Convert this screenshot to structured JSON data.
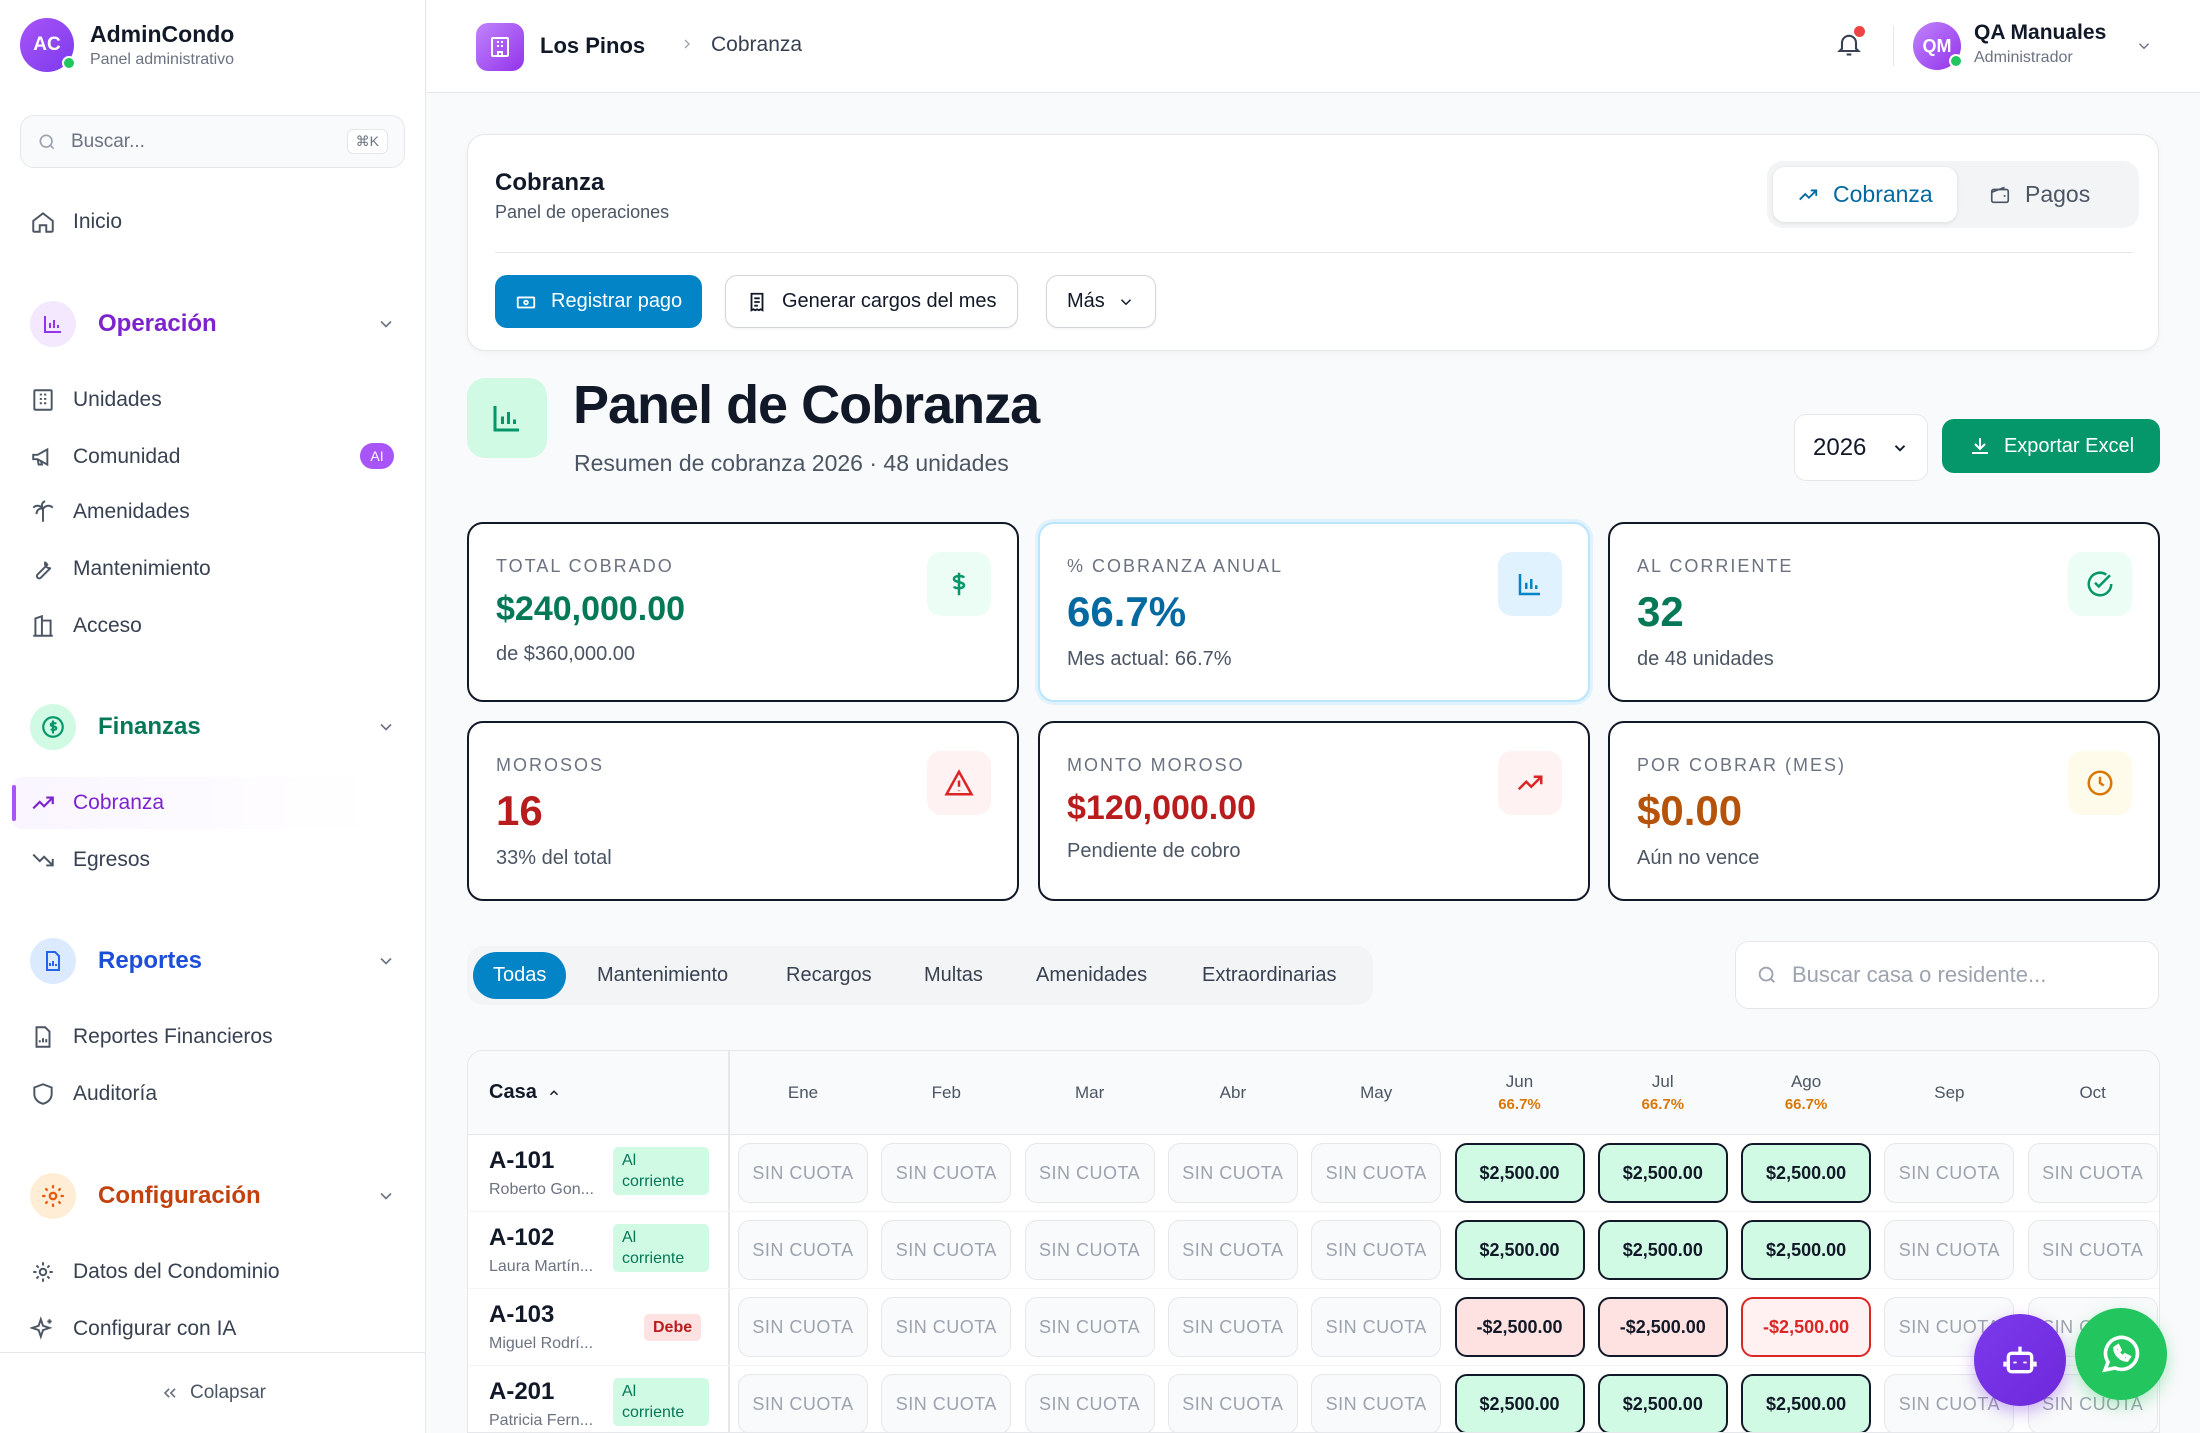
{
  "brand": {
    "initials": "AC",
    "name": "AdminCondo",
    "subtitle": "Panel administrativo"
  },
  "sidebar": {
    "search_placeholder": "Buscar...",
    "search_shortcut": "⌘K",
    "home": "Inicio",
    "sections": {
      "operacion": {
        "title": "Operación",
        "color": "#7e22ce",
        "items": [
          "Unidades",
          "Comunidad",
          "Amenidades",
          "Mantenimiento",
          "Acceso"
        ],
        "ai_badge": "AI"
      },
      "finanzas": {
        "title": "Finanzas",
        "color": "#047857",
        "items": [
          "Cobranza",
          "Egresos"
        ]
      },
      "reportes": {
        "title": "Reportes",
        "color": "#1d4ed8",
        "items": [
          "Reportes Financieros",
          "Auditoría"
        ]
      },
      "configuracion": {
        "title": "Configuración",
        "color": "#c2410c",
        "items": [
          "Datos del Condominio",
          "Configurar con IA"
        ]
      }
    },
    "collapse": "Colapsar"
  },
  "topbar": {
    "breadcrumb": [
      "Los Pinos",
      "Cobranza"
    ],
    "user": {
      "initials": "QM",
      "name": "QA Manuales",
      "role": "Administrador"
    }
  },
  "ops": {
    "title": "Cobranza",
    "subtitle": "Panel de operaciones",
    "segments": [
      "Cobranza",
      "Pagos"
    ],
    "buttons": {
      "register": "Registrar pago",
      "generate": "Generar cargos del mes",
      "more": "Más"
    }
  },
  "header": {
    "title": "Panel de Cobranza",
    "subtitle": "Resumen de cobranza 2026 · 48 unidades",
    "year": "2026",
    "export": "Exportar Excel"
  },
  "stats": [
    {
      "label": "TOTAL COBRADO",
      "value": "$240,000.00",
      "sub": "de $360,000.00",
      "color": "#047857"
    },
    {
      "label": "% COBRANZA ANUAL",
      "value": "66.7%",
      "sub": "Mes actual: 66.7%",
      "color": "#0369a1"
    },
    {
      "label": "AL CORRIENTE",
      "value": "32",
      "sub": "de 48 unidades",
      "color": "#047857"
    },
    {
      "label": "MOROSOS",
      "value": "16",
      "sub": "33% del total",
      "color": "#b91c1c"
    },
    {
      "label": "MONTO MOROSO",
      "value": "$120,000.00",
      "sub": "Pendiente de cobro",
      "color": "#b91c1c"
    },
    {
      "label": "POR COBRAR (MES)",
      "value": "$0.00",
      "sub": "Aún no vence",
      "color": "#b45309"
    }
  ],
  "filters": {
    "tabs": [
      "Todas",
      "Mantenimiento",
      "Recargos",
      "Multas",
      "Amenidades",
      "Extraordinarias"
    ],
    "search_placeholder": "Buscar casa o residente..."
  },
  "table": {
    "casa_header": "Casa",
    "months": [
      {
        "name": "Ene",
        "pct": ""
      },
      {
        "name": "Feb",
        "pct": ""
      },
      {
        "name": "Mar",
        "pct": ""
      },
      {
        "name": "Abr",
        "pct": ""
      },
      {
        "name": "May",
        "pct": ""
      },
      {
        "name": "Jun",
        "pct": "66.7%"
      },
      {
        "name": "Jul",
        "pct": "66.7%"
      },
      {
        "name": "Ago",
        "pct": "66.7%"
      },
      {
        "name": "Sep",
        "pct": ""
      },
      {
        "name": "Oct",
        "pct": ""
      }
    ],
    "rows": [
      {
        "casa": "A-101",
        "resident": "Roberto Gon...",
        "status": "Al corriente",
        "status_kind": "ok",
        "cells": [
          "SIN CUOTA",
          "SIN CUOTA",
          "SIN CUOTA",
          "SIN CUOTA",
          "SIN CUOTA",
          "$2,500.00",
          "$2,500.00",
          "$2,500.00",
          "SIN CUOTA",
          "SIN CUOTA"
        ],
        "kinds": [
          "none",
          "none",
          "none",
          "none",
          "none",
          "paid",
          "paid",
          "paid",
          "none",
          "none"
        ]
      },
      {
        "casa": "A-102",
        "resident": "Laura Martín...",
        "status": "Al corriente",
        "status_kind": "ok",
        "cells": [
          "SIN CUOTA",
          "SIN CUOTA",
          "SIN CUOTA",
          "SIN CUOTA",
          "SIN CUOTA",
          "$2,500.00",
          "$2,500.00",
          "$2,500.00",
          "SIN CUOTA",
          "SIN CUOTA"
        ],
        "kinds": [
          "none",
          "none",
          "none",
          "none",
          "none",
          "paid",
          "paid",
          "paid",
          "none",
          "none"
        ]
      },
      {
        "casa": "A-103",
        "resident": "Miguel Rodrí...",
        "status": "Debe",
        "status_kind": "bad",
        "cells": [
          "SIN CUOTA",
          "SIN CUOTA",
          "SIN CUOTA",
          "SIN CUOTA",
          "SIN CUOTA",
          "-$2,500.00",
          "-$2,500.00",
          "-$2,500.00",
          "SIN CUOTA",
          "SIN CUOTA"
        ],
        "kinds": [
          "none",
          "none",
          "none",
          "none",
          "none",
          "owed",
          "owed",
          "owed-red",
          "none",
          "none"
        ]
      },
      {
        "casa": "A-201",
        "resident": "Patricia Fern...",
        "status": "Al corriente",
        "status_kind": "ok",
        "cells": [
          "SIN CUOTA",
          "SIN CUOTA",
          "SIN CUOTA",
          "SIN CUOTA",
          "SIN CUOTA",
          "$2,500.00",
          "$2,500.00",
          "$2,500.00",
          "SIN CUOTA",
          "SIN CUOTA"
        ],
        "kinds": [
          "none",
          "none",
          "none",
          "none",
          "none",
          "paid",
          "paid",
          "paid",
          "none",
          "none"
        ]
      }
    ]
  },
  "icons": {
    "bot": "robot-icon",
    "whatsapp": "whatsapp-icon"
  }
}
